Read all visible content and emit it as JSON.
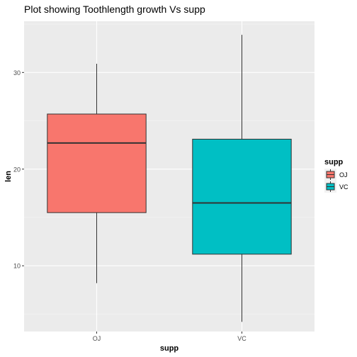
{
  "chart_data": {
    "type": "boxplot",
    "title": "Plot showing Toothlength growth Vs supp",
    "xlabel": "supp",
    "ylabel": "len",
    "categories": [
      "OJ",
      "VC"
    ],
    "ylim": [
      3.2,
      35.3
    ],
    "yticks": [
      10,
      20,
      30
    ],
    "boxes": [
      {
        "category": "OJ",
        "min": 8.2,
        "q1": 15.5,
        "median": 22.7,
        "q3": 25.7,
        "max": 30.9,
        "color": "#F8766D"
      },
      {
        "category": "VC",
        "min": 4.2,
        "q1": 11.2,
        "median": 16.5,
        "q3": 23.1,
        "max": 33.9,
        "color": "#00BFC4"
      }
    ],
    "legend": {
      "title": "supp",
      "position": "right",
      "items": [
        {
          "label": "OJ",
          "color": "#F8766D"
        },
        {
          "label": "VC",
          "color": "#00BFC4"
        }
      ]
    },
    "panel_background": "#EBEBEB",
    "grid": true
  }
}
